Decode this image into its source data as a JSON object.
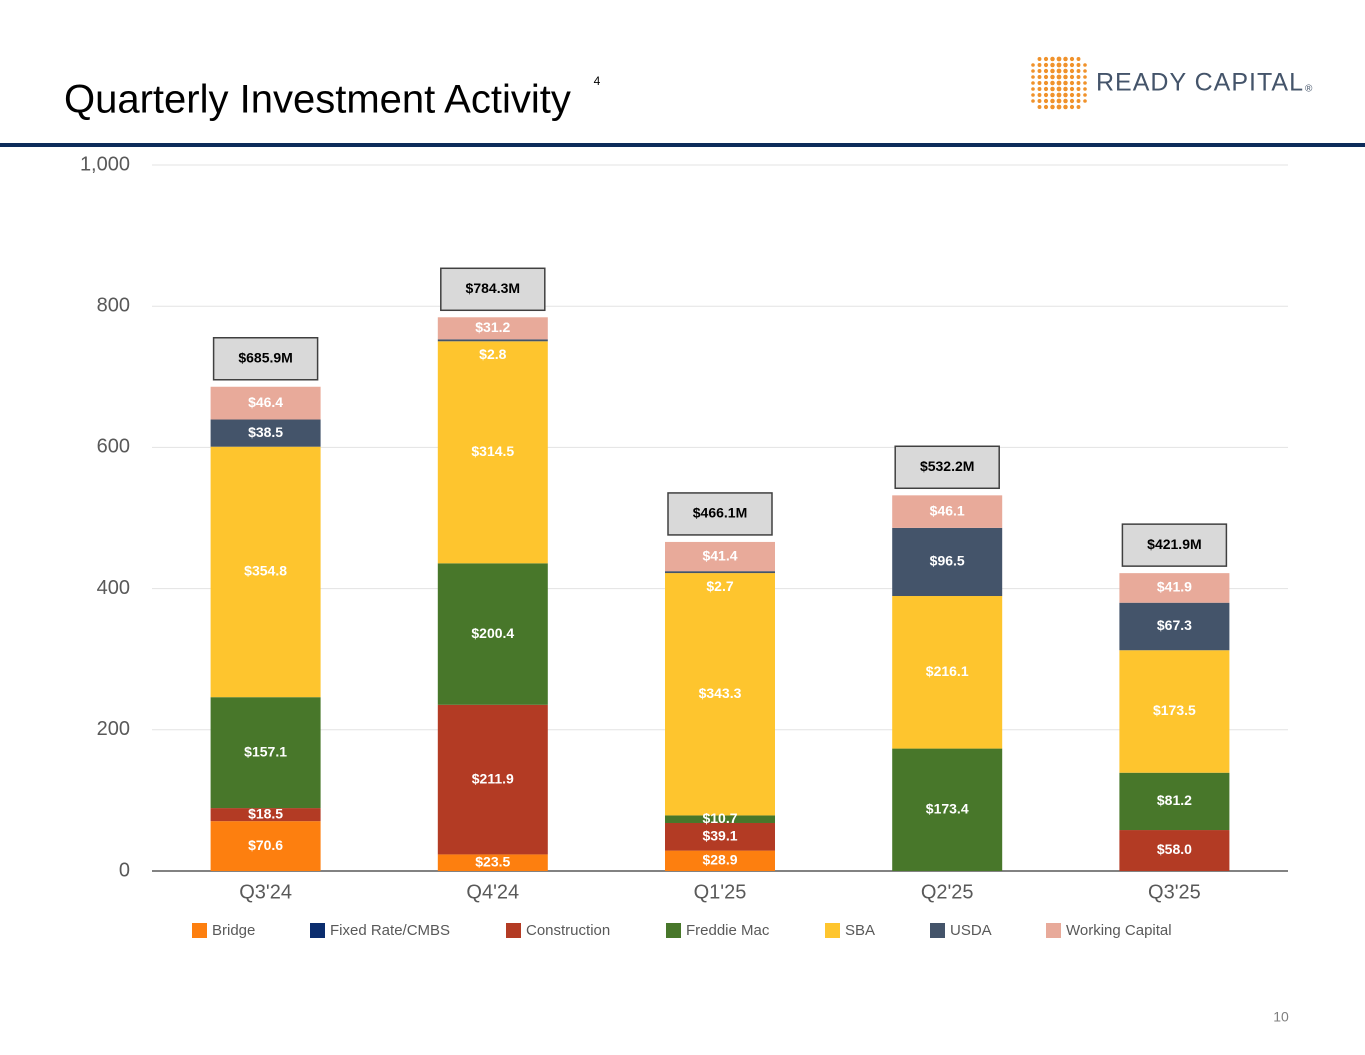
{
  "header": {
    "title": "Quarterly Investment Activity",
    "footnote_ref": "4",
    "logo_text": "READY CAPITAL",
    "logo_mark": "®"
  },
  "page_number": "10",
  "chart_data": {
    "type": "stacked_bar",
    "categories": [
      "Q3'24",
      "Q4'24",
      "Q1'25",
      "Q2'25",
      "Q3'25"
    ],
    "ylim": [
      0,
      1000
    ],
    "yticks": [
      0,
      200,
      400,
      600,
      800,
      {
        "value": 1000,
        "label": "1,000"
      }
    ],
    "grid": true,
    "legend": "bottom",
    "series": [
      {
        "name": "Bridge",
        "color": "#fd7f0f",
        "values": [
          70.6,
          23.5,
          28.9,
          null,
          null
        ],
        "value_labels": [
          "$70.6",
          "$23.5",
          "$28.9",
          null,
          null
        ]
      },
      {
        "name": "Fixed Rate/CMBS",
        "color": "#0b2d6e",
        "values": [
          null,
          null,
          null,
          null,
          null
        ],
        "value_labels": [
          null,
          null,
          null,
          null,
          null
        ]
      },
      {
        "name": "Construction",
        "color": "#b33b24",
        "values": [
          18.5,
          211.9,
          39.1,
          null,
          58.0
        ],
        "value_labels": [
          "$18.5",
          "$211.9",
          "$39.1",
          null,
          "$58.0"
        ]
      },
      {
        "name": "Freddie Mac",
        "color": "#48772a",
        "values": [
          157.1,
          200.4,
          10.7,
          173.4,
          81.2
        ],
        "value_labels": [
          "$157.1",
          "$200.4",
          "$10.7",
          "$173.4",
          "$81.2"
        ]
      },
      {
        "name": "SBA",
        "color": "#fec52e",
        "values": [
          354.8,
          314.5,
          343.3,
          216.1,
          173.5
        ],
        "value_labels": [
          "$354.8",
          "$314.5",
          "$343.3",
          "$216.1",
          "$173.5"
        ]
      },
      {
        "name": "USDA",
        "color": "#44546a",
        "values": [
          38.5,
          2.8,
          2.7,
          96.5,
          67.3
        ],
        "value_labels": [
          "$38.5",
          "$2.8",
          "$2.7",
          "$96.5",
          "$67.3"
        ]
      },
      {
        "name": "Working Capital",
        "color": "#e8aa9a",
        "values": [
          46.4,
          31.2,
          41.4,
          46.1,
          41.9
        ],
        "value_labels": [
          "$46.4",
          "$31.2",
          "$41.4",
          "$46.1",
          "$41.9"
        ]
      }
    ],
    "totals": [
      685.9,
      784.3,
      466.1,
      532.2,
      421.9
    ],
    "total_labels": [
      "$685.9M",
      "$784.3M",
      "$466.1M",
      "$532.2M",
      "$421.9M"
    ]
  }
}
